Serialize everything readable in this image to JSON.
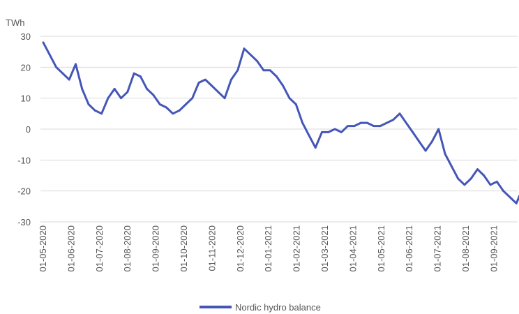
{
  "chart_data": {
    "type": "line",
    "title": "",
    "xlabel": "",
    "ylabel": "TWh",
    "ylim": [
      -30,
      30
    ],
    "yticks": [
      30,
      20,
      10,
      0,
      -10,
      -20,
      -30
    ],
    "grid": "horizontal",
    "legend_position": "bottom",
    "color": "#4456b8",
    "x_tick_labels": [
      "01-05-2020",
      "01-06-2020",
      "01-07-2020",
      "01-08-2020",
      "01-09-2020",
      "01-10-2020",
      "01-11-2020",
      "01-12-2020",
      "01-01-2021",
      "01-02-2021",
      "01-03-2021",
      "01-04-2021",
      "01-05-2021",
      "01-06-2021",
      "01-07-2021",
      "01-08-2021",
      "01-09-2021"
    ],
    "series": [
      {
        "name": "Nordic hydro balance",
        "x": [
          "2020-05-01",
          "2020-05-08",
          "2020-05-15",
          "2020-05-22",
          "2020-05-29",
          "2020-06-05",
          "2020-06-12",
          "2020-06-19",
          "2020-06-26",
          "2020-07-03",
          "2020-07-10",
          "2020-07-17",
          "2020-07-24",
          "2020-07-31",
          "2020-08-07",
          "2020-08-14",
          "2020-08-21",
          "2020-08-28",
          "2020-09-04",
          "2020-09-11",
          "2020-09-18",
          "2020-09-25",
          "2020-10-02",
          "2020-10-09",
          "2020-10-16",
          "2020-10-23",
          "2020-10-30",
          "2020-11-06",
          "2020-11-13",
          "2020-11-20",
          "2020-11-27",
          "2020-12-04",
          "2020-12-11",
          "2020-12-18",
          "2020-12-25",
          "2021-01-01",
          "2021-01-08",
          "2021-01-15",
          "2021-01-22",
          "2021-01-29",
          "2021-02-05",
          "2021-02-12",
          "2021-02-19",
          "2021-02-26",
          "2021-03-05",
          "2021-03-12",
          "2021-03-19",
          "2021-03-26",
          "2021-04-02",
          "2021-04-09",
          "2021-04-16",
          "2021-04-23",
          "2021-04-30",
          "2021-05-07",
          "2021-05-14",
          "2021-05-21",
          "2021-05-28",
          "2021-06-04",
          "2021-06-11",
          "2021-06-18",
          "2021-06-25",
          "2021-07-02",
          "2021-07-09",
          "2021-07-16",
          "2021-07-23",
          "2021-07-30",
          "2021-08-06",
          "2021-08-13",
          "2021-08-20",
          "2021-08-27",
          "2021-09-03",
          "2021-09-10",
          "2021-09-17",
          "2021-09-24",
          "2021-10-01"
        ],
        "y": [
          28,
          24,
          20,
          18,
          16,
          21,
          13,
          8,
          6,
          5,
          10,
          13,
          10,
          12,
          18,
          17,
          13,
          11,
          8,
          7,
          5,
          6,
          8,
          10,
          15,
          16,
          14,
          12,
          10,
          16,
          19,
          26,
          24,
          22,
          19,
          19,
          17,
          14,
          10,
          8,
          2,
          -2,
          -6,
          -1,
          -1,
          0,
          -1,
          1,
          1,
          2,
          2,
          1,
          1,
          2,
          3,
          5,
          2,
          -1,
          -4,
          -7,
          -4,
          0,
          -8,
          -12,
          -16,
          -18,
          -16,
          -13,
          -15,
          -18,
          -17,
          -20,
          -22,
          -24,
          -19
        ]
      }
    ]
  }
}
